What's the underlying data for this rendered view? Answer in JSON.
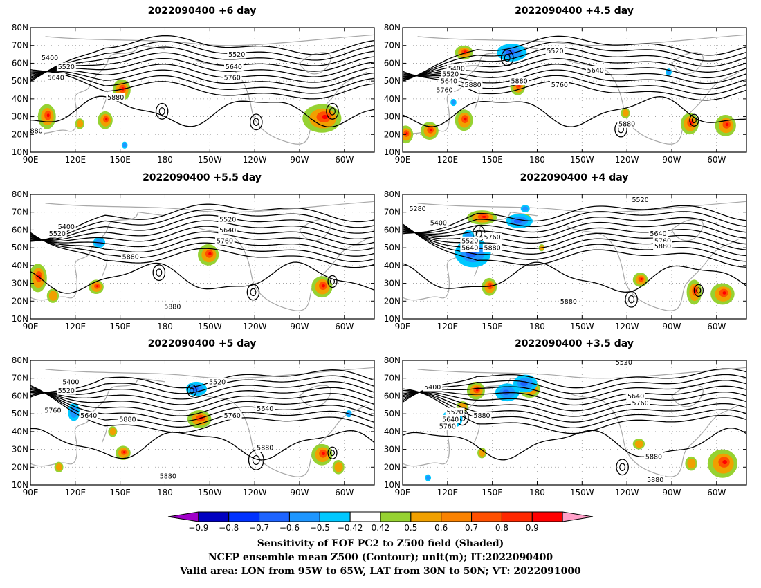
{
  "panels": [
    {
      "id": "p6",
      "title": "2022090400 +6 day",
      "labels": [
        {
          "t": "5400",
          "lon": 103,
          "lat": 63
        },
        {
          "t": "5520",
          "lon": 114,
          "lat": 58
        },
        {
          "t": "5640",
          "lon": 107,
          "lat": 52
        },
        {
          "t": "5880",
          "lon": 147,
          "lat": 41
        },
        {
          "t": "880",
          "lon": 94,
          "lat": 22
        },
        {
          "t": "5520",
          "lon": 228,
          "lat": 65
        },
        {
          "t": "5640",
          "lon": 226,
          "lat": 58
        },
        {
          "t": "5760",
          "lon": 225,
          "lat": 52
        }
      ],
      "pos": [
        {
          "lon": 101,
          "lat": 30,
          "rx": 6,
          "ry": 7
        },
        {
          "lon": 140,
          "lat": 28,
          "rx": 5,
          "ry": 5
        },
        {
          "lon": 151,
          "lat": 45,
          "rx": 6,
          "ry": 6
        },
        {
          "lon": 285,
          "lat": 29,
          "rx": 13,
          "ry": 8
        },
        {
          "lon": 123,
          "lat": 26,
          "rx": 3,
          "ry": 3
        }
      ],
      "neg": [
        {
          "lon": 153,
          "lat": 14,
          "rx": 2,
          "ry": 2
        }
      ],
      "lows": [
        {
          "lon": 178,
          "lat": 33,
          "r": 4
        },
        {
          "lon": 241,
          "lat": 27,
          "r": 4
        },
        {
          "lon": 292,
          "lat": 33,
          "r": 4
        }
      ]
    },
    {
      "id": "p45",
      "title": "2022090400 +4.5 day",
      "labels": [
        {
          "t": "5400",
          "lon": 126,
          "lat": 57
        },
        {
          "t": "5520",
          "lon": 122,
          "lat": 54
        },
        {
          "t": "5640",
          "lon": 121,
          "lat": 50
        },
        {
          "t": "5760",
          "lon": 118,
          "lat": 45
        },
        {
          "t": "5880",
          "lon": 137,
          "lat": 48
        },
        {
          "t": "5880",
          "lon": 168,
          "lat": 50
        },
        {
          "t": "5760",
          "lon": 195,
          "lat": 48
        },
        {
          "t": "5640",
          "lon": 219,
          "lat": 56
        },
        {
          "t": "5520",
          "lon": 192,
          "lat": 67
        },
        {
          "t": "5880",
          "lon": 240,
          "lat": 26
        }
      ],
      "pos": [
        {
          "lon": 92,
          "lat": 20,
          "rx": 5,
          "ry": 5
        },
        {
          "lon": 108,
          "lat": 22,
          "rx": 6,
          "ry": 5
        },
        {
          "lon": 131,
          "lat": 28,
          "rx": 6,
          "ry": 6
        },
        {
          "lon": 167,
          "lat": 47,
          "rx": 5,
          "ry": 5
        },
        {
          "lon": 131,
          "lat": 66,
          "rx": 6,
          "ry": 4
        },
        {
          "lon": 282,
          "lat": 26,
          "rx": 6,
          "ry": 6
        },
        {
          "lon": 306,
          "lat": 25,
          "rx": 7,
          "ry": 6
        },
        {
          "lon": 239,
          "lat": 32,
          "rx": 3,
          "ry": 3
        }
      ],
      "neg": [
        {
          "lon": 163,
          "lat": 66,
          "rx": 10,
          "ry": 5
        },
        {
          "lon": 124,
          "lat": 38,
          "rx": 2,
          "ry": 2
        },
        {
          "lon": 268,
          "lat": 55,
          "rx": 2,
          "ry": 2
        }
      ],
      "lows": [
        {
          "lon": 160,
          "lat": 63,
          "r": 4
        },
        {
          "lon": 236,
          "lat": 23,
          "r": 4
        },
        {
          "lon": 285,
          "lat": 28,
          "r": 3
        }
      ]
    },
    {
      "id": "p55",
      "title": "2022090400 +5.5 day",
      "labels": [
        {
          "t": "5400",
          "lon": 114,
          "lat": 62
        },
        {
          "t": "5520",
          "lon": 108,
          "lat": 58
        },
        {
          "t": "5880",
          "lon": 157,
          "lat": 45
        },
        {
          "t": "5880",
          "lon": 185,
          "lat": 17
        },
        {
          "t": "5520",
          "lon": 222,
          "lat": 66
        },
        {
          "t": "5640",
          "lon": 222,
          "lat": 60
        },
        {
          "t": "5760",
          "lon": 220,
          "lat": 54
        }
      ],
      "pos": [
        {
          "lon": 95,
          "lat": 33,
          "rx": 6,
          "ry": 8
        },
        {
          "lon": 105,
          "lat": 23,
          "rx": 4,
          "ry": 4
        },
        {
          "lon": 134,
          "lat": 28,
          "rx": 5,
          "ry": 4
        },
        {
          "lon": 209,
          "lat": 46,
          "rx": 7,
          "ry": 6
        },
        {
          "lon": 285,
          "lat": 28,
          "rx": 7,
          "ry": 6
        }
      ],
      "neg": [
        {
          "lon": 136,
          "lat": 53,
          "rx": 4,
          "ry": 3
        }
      ],
      "lows": [
        {
          "lon": 176,
          "lat": 36,
          "r": 4
        },
        {
          "lon": 239,
          "lat": 25,
          "r": 4
        },
        {
          "lon": 292,
          "lat": 31,
          "r": 3
        }
      ]
    },
    {
      "id": "p4",
      "title": "2022090400 +4 day",
      "labels": [
        {
          "t": "5280",
          "lon": 100,
          "lat": 72
        },
        {
          "t": "5400",
          "lon": 114,
          "lat": 64
        },
        {
          "t": "5520",
          "lon": 135,
          "lat": 54
        },
        {
          "t": "5640",
          "lon": 135,
          "lat": 50
        },
        {
          "t": "5760",
          "lon": 150,
          "lat": 56
        },
        {
          "t": "5880",
          "lon": 150,
          "lat": 50
        },
        {
          "t": "5880",
          "lon": 201,
          "lat": 20
        },
        {
          "t": "5520",
          "lon": 249,
          "lat": 77
        },
        {
          "t": "5640",
          "lon": 261,
          "lat": 58
        },
        {
          "t": "5760",
          "lon": 264,
          "lat": 54
        },
        {
          "t": "5880",
          "lon": 264,
          "lat": 51
        }
      ],
      "pos": [
        {
          "lon": 148,
          "lat": 28,
          "rx": 5,
          "ry": 5
        },
        {
          "lon": 143,
          "lat": 67,
          "rx": 10,
          "ry": 4
        },
        {
          "lon": 183,
          "lat": 50,
          "rx": 2,
          "ry": 2
        },
        {
          "lon": 249,
          "lat": 32,
          "rx": 5,
          "ry": 4
        },
        {
          "lon": 285,
          "lat": 25,
          "rx": 5,
          "ry": 7
        },
        {
          "lon": 304,
          "lat": 24,
          "rx": 8,
          "ry": 6
        },
        {
          "lon": 172,
          "lat": 66,
          "rx": 4,
          "ry": 3
        }
      ],
      "neg": [
        {
          "lon": 137,
          "lat": 47,
          "rx": 12,
          "ry": 8
        },
        {
          "lon": 134,
          "lat": 56,
          "rx": 4,
          "ry": 4
        },
        {
          "lon": 168,
          "lat": 65,
          "rx": 9,
          "ry": 4
        },
        {
          "lon": 172,
          "lat": 72,
          "rx": 3,
          "ry": 2
        }
      ],
      "lows": [
        {
          "lon": 141,
          "lat": 58,
          "r": 4
        },
        {
          "lon": 243,
          "lat": 21,
          "r": 4
        },
        {
          "lon": 288,
          "lat": 26,
          "r": 3
        }
      ]
    },
    {
      "id": "p5",
      "title": "2022090400 +5 day",
      "labels": [
        {
          "t": "5400",
          "lon": 117,
          "lat": 68
        },
        {
          "t": "5520",
          "lon": 114,
          "lat": 63
        },
        {
          "t": "5760",
          "lon": 105,
          "lat": 52
        },
        {
          "t": "5640",
          "lon": 129,
          "lat": 49
        },
        {
          "t": "5880",
          "lon": 155,
          "lat": 47
        },
        {
          "t": "5520",
          "lon": 215,
          "lat": 68
        },
        {
          "t": "5640",
          "lon": 247,
          "lat": 53
        },
        {
          "t": "5760",
          "lon": 225,
          "lat": 49
        },
        {
          "t": "5880",
          "lon": 182,
          "lat": 15
        },
        {
          "t": "5880",
          "lon": 247,
          "lat": 31
        }
      ],
      "pos": [
        {
          "lon": 152,
          "lat": 28,
          "rx": 5,
          "ry": 4
        },
        {
          "lon": 145,
          "lat": 40,
          "rx": 3,
          "ry": 3
        },
        {
          "lon": 203,
          "lat": 47,
          "rx": 8,
          "ry": 5
        },
        {
          "lon": 285,
          "lat": 27,
          "rx": 7,
          "ry": 6
        },
        {
          "lon": 109,
          "lat": 20,
          "rx": 3,
          "ry": 3
        },
        {
          "lon": 296,
          "lat": 20,
          "rx": 4,
          "ry": 4
        }
      ],
      "neg": [
        {
          "lon": 201,
          "lat": 64,
          "rx": 7,
          "ry": 4
        },
        {
          "lon": 119,
          "lat": 51,
          "rx": 4,
          "ry": 5
        },
        {
          "lon": 303,
          "lat": 50,
          "rx": 2,
          "ry": 2
        }
      ],
      "lows": [
        {
          "lon": 198,
          "lat": 63,
          "r": 3
        },
        {
          "lon": 241,
          "lat": 24,
          "r": 5
        },
        {
          "lon": 292,
          "lat": 28,
          "r": 3
        }
      ]
    },
    {
      "id": "p35",
      "title": "2022090400 +3.5 day",
      "labels": [
        {
          "t": "5400",
          "lon": 110,
          "lat": 65
        },
        {
          "t": "5520",
          "lon": 125,
          "lat": 51
        },
        {
          "t": "5640",
          "lon": 122,
          "lat": 47
        },
        {
          "t": "5760",
          "lon": 120,
          "lat": 43
        },
        {
          "t": "5880",
          "lon": 143,
          "lat": 49
        },
        {
          "t": "5520",
          "lon": 238,
          "lat": 79
        },
        {
          "t": "5640",
          "lon": 246,
          "lat": 60
        },
        {
          "t": "5760",
          "lon": 249,
          "lat": 56
        },
        {
          "t": "5880",
          "lon": 258,
          "lat": 26
        },
        {
          "t": "5880",
          "lon": 259,
          "lat": 13
        }
      ],
      "pos": [
        {
          "lon": 139,
          "lat": 63,
          "rx": 6,
          "ry": 5
        },
        {
          "lon": 130,
          "lat": 54,
          "rx": 4,
          "ry": 3
        },
        {
          "lon": 143,
          "lat": 28,
          "rx": 3,
          "ry": 3
        },
        {
          "lon": 175,
          "lat": 64,
          "rx": 7,
          "ry": 5
        },
        {
          "lon": 283,
          "lat": 22,
          "rx": 4,
          "ry": 4
        },
        {
          "lon": 304,
          "lat": 22,
          "rx": 10,
          "ry": 8
        },
        {
          "lon": 248,
          "lat": 33,
          "rx": 4,
          "ry": 3
        }
      ],
      "neg": [
        {
          "lon": 123,
          "lat": 47,
          "rx": 7,
          "ry": 5
        },
        {
          "lon": 160,
          "lat": 62,
          "rx": 8,
          "ry": 5
        },
        {
          "lon": 172,
          "lat": 67,
          "rx": 8,
          "ry": 5
        },
        {
          "lon": 107,
          "lat": 14,
          "rx": 2,
          "ry": 2
        }
      ],
      "lows": [
        {
          "lon": 130,
          "lat": 48,
          "r": 4
        },
        {
          "lon": 237,
          "lat": 20,
          "r": 4
        }
      ]
    }
  ],
  "lat_ticks": [
    "10N",
    "20N",
    "30N",
    "40N",
    "50N",
    "60N",
    "70N",
    "80N"
  ],
  "lon_ticks": [
    "90E",
    "120E",
    "150E",
    "180",
    "150W",
    "120W",
    "90W",
    "60W"
  ],
  "colorbar": {
    "colors": [
      "#a000c8",
      "#0000c0",
      "#0032ff",
      "#1e64ff",
      "#1e96ff",
      "#00c8ff",
      "#ffffff",
      "#96d232",
      "#f0a000",
      "#fa8200",
      "#ff5000",
      "#ff2800",
      "#ff0000",
      "#ffa0c8"
    ],
    "labels": [
      "−0.9",
      "−0.8",
      "−0.7",
      "−0.6",
      "−0.5",
      "−0.42",
      "0.42",
      "0.5",
      "0.6",
      "0.7",
      "0.8",
      "0.9"
    ]
  },
  "footer": {
    "line1": "Sensitivity of EOF PC2 to Z500 field (Shaded)",
    "line2": "NCEP ensemble mean Z500 (Contour); unit(m); IT:2022090400",
    "line3": "Valid area: LON from 95W to 65W, LAT from 30N to 50N; VT: 2022091000"
  }
}
